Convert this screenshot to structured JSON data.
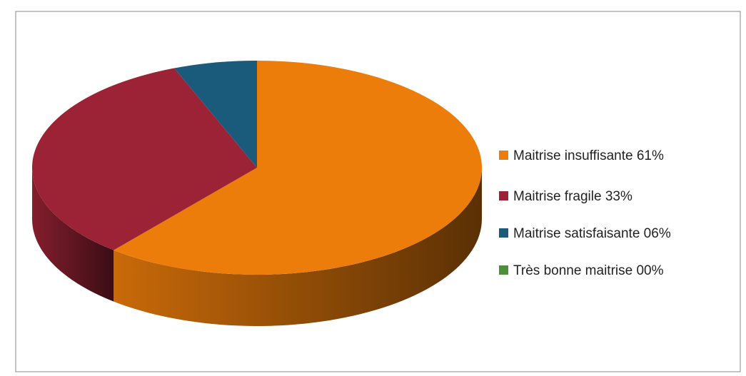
{
  "chart_data": {
    "type": "pie",
    "categories": [
      "Maitrise insuffisante 61%",
      "Maitrise fragile 33%",
      "Maitrise satisfaisante 06%",
      "Très bonne maitrise 00%"
    ],
    "values": [
      61,
      33,
      6,
      0
    ],
    "colors": [
      "#ed7d0a",
      "#9b2335",
      "#1a5b7c",
      "#4e8f3a"
    ]
  }
}
